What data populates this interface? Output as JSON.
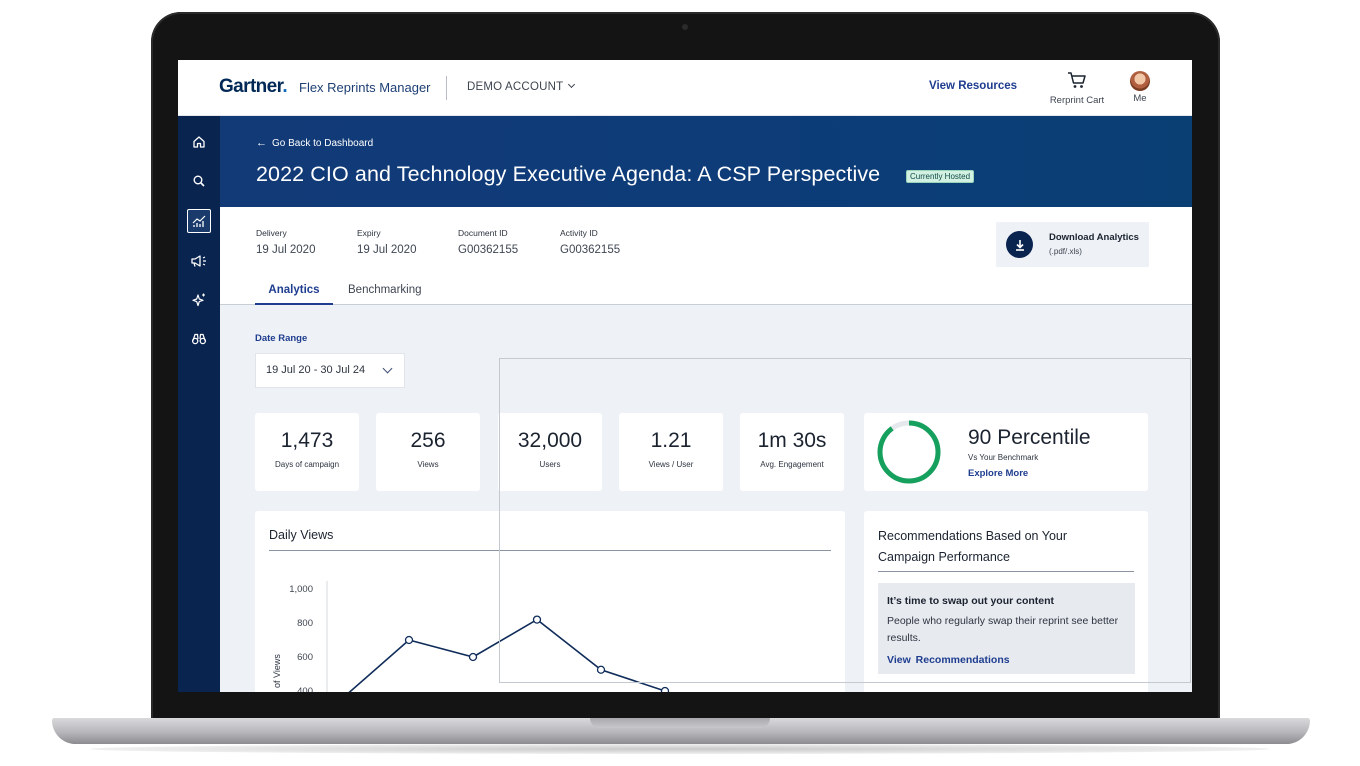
{
  "topbar": {
    "brand": "Gartner",
    "brand_dot": ".",
    "app_name": "Flex Reprints Manager",
    "account": "DEMO ACCOUNT",
    "view_resources": "View Resources",
    "cart_label": "Rerprint Cart",
    "me_label": "Me"
  },
  "sidebar": {
    "items": [
      {
        "icon": "home-icon"
      },
      {
        "icon": "search-icon"
      },
      {
        "icon": "analytics-chart-icon",
        "active": true
      },
      {
        "icon": "megaphone-icon"
      },
      {
        "icon": "sparkle-icon"
      },
      {
        "icon": "binoculars-icon"
      }
    ]
  },
  "hero": {
    "back_label": "Go Back to Dashboard",
    "title": "2022 CIO and Technology Executive Agenda: A CSP Perspective",
    "badge": "Currently Hosted"
  },
  "meta": [
    {
      "label": "Delivery",
      "value": "19 Jul 2020"
    },
    {
      "label": "Expiry",
      "value": "19 Jul 2020"
    },
    {
      "label": "Document ID",
      "value": "G00362155"
    },
    {
      "label": "Activity ID",
      "value": "G00362155"
    }
  ],
  "download": {
    "title": "Download Analytics",
    "subtitle": "(.pdf/.xls)"
  },
  "tabs": {
    "analytics": "Analytics",
    "benchmarking": "Benchmarking"
  },
  "date_range": {
    "label": "Date Range",
    "value": "19 Jul 20 - 30 Jul 24"
  },
  "stats": [
    {
      "value": "1,473",
      "label": "Days of campaign"
    },
    {
      "value": "256",
      "label": "Views"
    },
    {
      "value": "32,000",
      "label": "Users"
    },
    {
      "value": "1.21",
      "label": "Views / User"
    },
    {
      "value": "1m 30s",
      "label": "Avg. Engagement"
    }
  ],
  "benchmark": {
    "percentile": "90 Percentile",
    "vs": "Vs Your Benchmark",
    "explore": "Explore More",
    "ring_fraction": 0.9,
    "ring_color": "#16a05d"
  },
  "recommendations": {
    "title": "Recommendations Based on Your Campaign Performance",
    "head": "It’s time to swap out your content",
    "body": "People who regularly swap their reprint see better results.",
    "link": "View  Recommendations"
  },
  "chart_data": {
    "type": "line",
    "title": "Daily Views",
    "ylabel": "of Views",
    "yticks": [
      1000,
      800,
      600,
      400
    ],
    "ytick_labels": [
      "1,000",
      "800",
      "600",
      "400"
    ],
    "ylim": [
      400,
      1000
    ],
    "series": [
      {
        "values": [
          370,
          700,
          600,
          820,
          525,
          400
        ]
      }
    ],
    "line_color": "#0f2c5a",
    "grid": false
  }
}
